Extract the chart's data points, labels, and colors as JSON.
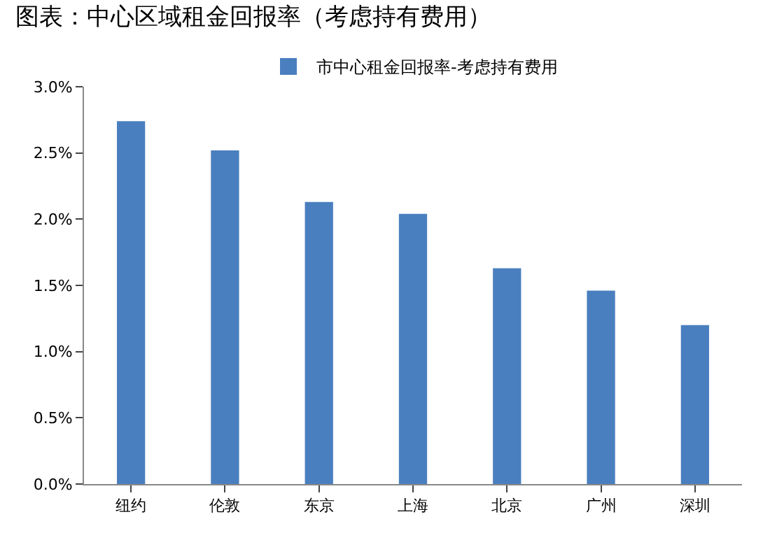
{
  "chart_data": {
    "type": "bar",
    "title": "图表：中心区域租金回报率（考虑持有费用）",
    "categories": [
      "纽约",
      "伦敦",
      "东京",
      "上海",
      "北京",
      "广州",
      "深圳"
    ],
    "series": [
      {
        "name": "市中心租金回报率-考虑持有费用",
        "color": "#4a7fbf",
        "values": [
          2.74,
          2.52,
          2.13,
          2.04,
          1.63,
          1.46,
          1.2
        ]
      }
    ],
    "ylim": [
      0,
      3.0
    ],
    "yticks": [
      {
        "value": 0,
        "label": "0.0%"
      },
      {
        "value": 0.5,
        "label": "0.5%"
      },
      {
        "value": 1.0,
        "label": "1.0%"
      },
      {
        "value": 1.5,
        "label": "1.5%"
      },
      {
        "value": 2.0,
        "label": "2.0%"
      },
      {
        "value": 2.5,
        "label": "2.5%"
      },
      {
        "value": 3.0,
        "label": "3.0%"
      }
    ],
    "legend": "top"
  }
}
